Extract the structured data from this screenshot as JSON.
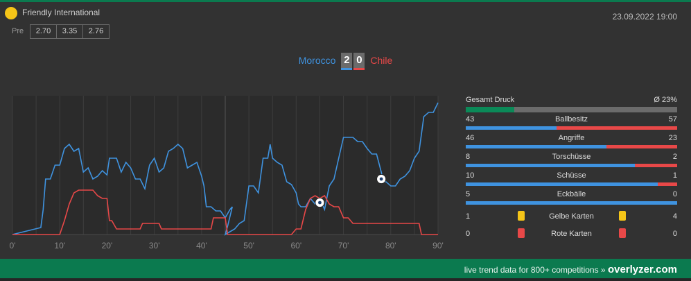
{
  "match": {
    "competition": "Friendly International",
    "pre_label": "Pre",
    "odds": [
      "2.70",
      "3.35",
      "2.76"
    ],
    "datetime": "23.09.2022 19:00",
    "home_team": "Morocco",
    "away_team": "Chile",
    "home_score": "2",
    "away_score": "0"
  },
  "colors": {
    "home": "#3f93e0",
    "away": "#e84848",
    "brand_green": "#0b7a4f",
    "yellow_card": "#f5c518",
    "red_card": "#e84848"
  },
  "stats": {
    "pressure_label": "Gesamt Druck",
    "pressure_value": "Ø 23%",
    "pressure_percent": 23,
    "rows": [
      {
        "label": "Ballbesitz",
        "home": "43",
        "away": "57"
      },
      {
        "label": "Angriffe",
        "home": "46",
        "away": "23"
      },
      {
        "label": "Torschüsse",
        "home": "8",
        "away": "2"
      },
      {
        "label": "Schüsse",
        "home": "10",
        "away": "1"
      },
      {
        "label": "Eckbälle",
        "home": "5",
        "away": "0"
      }
    ],
    "yellow_cards": {
      "label": "Gelbe Karten",
      "home": "1",
      "away": "4",
      "icon": "yellow-card-icon"
    },
    "red_cards": {
      "label": "Rote Karten",
      "home": "0",
      "away": "0",
      "icon": "red-card-icon"
    }
  },
  "chart_data": {
    "type": "line",
    "x_ticks": [
      "0'",
      "10'",
      "20'",
      "30'",
      "40'",
      "50'",
      "60'",
      "70'",
      "80'",
      "90'"
    ],
    "xlim": [
      0,
      90
    ],
    "ylim": [
      0,
      100
    ],
    "grid": true,
    "half_time_break": 45,
    "goal_markers": [
      {
        "minute": 65,
        "team": "Morocco",
        "icon": "soccer-ball-icon"
      },
      {
        "minute": 78,
        "team": "Morocco",
        "icon": "soccer-ball-icon"
      }
    ],
    "series": [
      {
        "color": "#3f93e0",
        "points": [
          [
            0,
            0
          ],
          [
            6,
            5
          ],
          [
            6.5,
            18
          ],
          [
            7,
            40
          ],
          [
            8,
            40
          ],
          [
            9,
            50
          ],
          [
            10,
            50
          ],
          [
            11,
            62
          ],
          [
            12,
            65
          ],
          [
            13,
            60
          ],
          [
            14,
            62
          ],
          [
            15,
            45
          ],
          [
            16,
            48
          ],
          [
            17,
            40
          ],
          [
            18,
            42
          ],
          [
            19,
            46
          ],
          [
            20,
            43
          ],
          [
            20.5,
            55
          ],
          [
            22,
            55
          ],
          [
            23,
            45
          ],
          [
            24,
            52
          ],
          [
            25,
            48
          ],
          [
            26,
            40
          ],
          [
            27,
            40
          ],
          [
            28,
            33
          ],
          [
            29,
            50
          ],
          [
            30,
            55
          ],
          [
            31,
            45
          ],
          [
            32,
            48
          ],
          [
            33,
            60
          ],
          [
            34,
            62
          ],
          [
            35,
            65
          ],
          [
            36,
            62
          ],
          [
            37,
            48
          ],
          [
            38,
            50
          ],
          [
            39,
            52
          ],
          [
            40,
            42
          ],
          [
            40.5,
            35
          ],
          [
            41,
            20
          ],
          [
            42,
            20
          ],
          [
            43,
            17
          ],
          [
            44,
            17
          ],
          [
            45,
            12
          ],
          [
            46,
            18
          ],
          [
            46.5,
            20
          ],
          [
            45.5,
            6
          ],
          [
            45,
            0
          ],
          [
            47,
            4
          ],
          [
            48,
            8
          ],
          [
            49,
            10
          ],
          [
            50,
            35
          ],
          [
            51,
            35
          ],
          [
            52,
            30
          ],
          [
            53,
            55
          ],
          [
            54,
            55
          ],
          [
            54.5,
            65
          ],
          [
            55,
            55
          ],
          [
            56,
            52
          ],
          [
            57,
            50
          ],
          [
            58,
            38
          ],
          [
            59,
            36
          ],
          [
            60,
            30
          ],
          [
            60.5,
            22
          ],
          [
            61,
            20
          ],
          [
            62,
            20
          ],
          [
            63,
            26
          ],
          [
            64,
            22
          ],
          [
            65,
            26
          ],
          [
            66,
            18
          ],
          [
            67,
            35
          ],
          [
            68,
            40
          ],
          [
            69,
            55
          ],
          [
            70,
            70
          ],
          [
            72,
            70
          ],
          [
            73,
            67
          ],
          [
            74,
            67
          ],
          [
            75,
            62
          ],
          [
            76,
            58
          ],
          [
            77,
            58
          ],
          [
            78,
            45
          ],
          [
            78.5,
            38
          ],
          [
            79,
            38
          ],
          [
            80,
            35
          ],
          [
            81,
            35
          ],
          [
            82,
            40
          ],
          [
            83,
            42
          ],
          [
            84,
            46
          ],
          [
            85,
            55
          ],
          [
            86,
            60
          ],
          [
            87,
            85
          ],
          [
            88,
            88
          ],
          [
            89,
            88
          ],
          [
            90,
            95
          ]
        ]
      },
      {
        "color": "#e84848",
        "points": [
          [
            0,
            0
          ],
          [
            10,
            0
          ],
          [
            11,
            10
          ],
          [
            12,
            22
          ],
          [
            13,
            30
          ],
          [
            14,
            32
          ],
          [
            15,
            32
          ],
          [
            16,
            32
          ],
          [
            17,
            32
          ],
          [
            18,
            28
          ],
          [
            19,
            26
          ],
          [
            20,
            26
          ],
          [
            20.5,
            10
          ],
          [
            21,
            10
          ],
          [
            22,
            4
          ],
          [
            23,
            4
          ],
          [
            24,
            4
          ],
          [
            25,
            4
          ],
          [
            26,
            4
          ],
          [
            27,
            4
          ],
          [
            27.5,
            8
          ],
          [
            28,
            8
          ],
          [
            29,
            8
          ],
          [
            30,
            8
          ],
          [
            31,
            8
          ],
          [
            31.5,
            4
          ],
          [
            32,
            4
          ],
          [
            33,
            4
          ],
          [
            34,
            4
          ],
          [
            35,
            4
          ],
          [
            36,
            4
          ],
          [
            37,
            4
          ],
          [
            38,
            4
          ],
          [
            39,
            4
          ],
          [
            40,
            4
          ],
          [
            41,
            4
          ],
          [
            42,
            4
          ],
          [
            42.5,
            12
          ],
          [
            43,
            12
          ],
          [
            45,
            12
          ],
          [
            45.5,
            0
          ],
          [
            48,
            0
          ],
          [
            52,
            0
          ],
          [
            53,
            0
          ],
          [
            57,
            0
          ],
          [
            58,
            0
          ],
          [
            59,
            0
          ],
          [
            60,
            4
          ],
          [
            61,
            4
          ],
          [
            62,
            18
          ],
          [
            63,
            26
          ],
          [
            64,
            28
          ],
          [
            65,
            26
          ],
          [
            66,
            28
          ],
          [
            67,
            22
          ],
          [
            68,
            20
          ],
          [
            69,
            20
          ],
          [
            70,
            12
          ],
          [
            71,
            12
          ],
          [
            72,
            8
          ],
          [
            73,
            8
          ],
          [
            74,
            8
          ],
          [
            75,
            8
          ],
          [
            76,
            8
          ],
          [
            77,
            8
          ],
          [
            78,
            8
          ],
          [
            79,
            8
          ],
          [
            80,
            8
          ],
          [
            81,
            8
          ],
          [
            82,
            8
          ],
          [
            83,
            8
          ],
          [
            84,
            8
          ],
          [
            85,
            8
          ],
          [
            86,
            8
          ],
          [
            86.5,
            0
          ],
          [
            90,
            0
          ]
        ]
      }
    ]
  },
  "footer": {
    "text": "live trend data for 800+ competitions »",
    "brand": "overlyzer.com"
  }
}
